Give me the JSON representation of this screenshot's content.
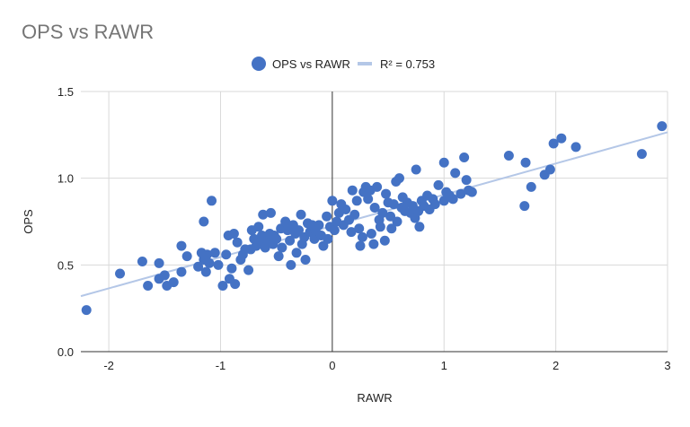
{
  "chart_data": {
    "type": "scatter",
    "title": "OPS vs RAWR",
    "xlabel": "RAWR",
    "ylabel": "OPS",
    "xlim": [
      -2.25,
      3.0
    ],
    "ylim": [
      0.0,
      1.5
    ],
    "x_ticks": [
      "-2",
      "-1",
      "0",
      "1",
      "2",
      "3"
    ],
    "y_ticks": [
      "0.0",
      "0.5",
      "1.0",
      "1.5"
    ],
    "grid": true,
    "legend_position": "top",
    "legend": {
      "series_label": "OPS vs RAWR",
      "trend_label": "R² = 0.753"
    },
    "colors": {
      "points": "#4472c4",
      "trendline": "#b4c7e7",
      "grid": "#d9d9d9",
      "zero_line": "#333333"
    },
    "trendline": {
      "slope": 0.18,
      "intercept": 0.725,
      "r_squared": 0.753
    },
    "series": [
      {
        "name": "OPS vs RAWR",
        "points": [
          [
            -2.2,
            0.24
          ],
          [
            -1.9,
            0.45
          ],
          [
            -1.7,
            0.52
          ],
          [
            -1.65,
            0.38
          ],
          [
            -1.55,
            0.51
          ],
          [
            -1.55,
            0.42
          ],
          [
            -1.5,
            0.44
          ],
          [
            -1.48,
            0.38
          ],
          [
            -1.42,
            0.4
          ],
          [
            -1.35,
            0.61
          ],
          [
            -1.35,
            0.46
          ],
          [
            -1.3,
            0.55
          ],
          [
            -1.2,
            0.49
          ],
          [
            -1.17,
            0.57
          ],
          [
            -1.15,
            0.53
          ],
          [
            -1.15,
            0.75
          ],
          [
            -1.13,
            0.46
          ],
          [
            -1.12,
            0.56
          ],
          [
            -1.1,
            0.51
          ],
          [
            -1.08,
            0.87
          ],
          [
            -1.05,
            0.57
          ],
          [
            -1.02,
            0.5
          ],
          [
            -0.98,
            0.38
          ],
          [
            -0.95,
            0.56
          ],
          [
            -0.93,
            0.67
          ],
          [
            -0.92,
            0.42
          ],
          [
            -0.9,
            0.48
          ],
          [
            -0.88,
            0.68
          ],
          [
            -0.87,
            0.39
          ],
          [
            -0.85,
            0.63
          ],
          [
            -0.82,
            0.53
          ],
          [
            -0.8,
            0.56
          ],
          [
            -0.78,
            0.59
          ],
          [
            -0.75,
            0.47
          ],
          [
            -0.73,
            0.59
          ],
          [
            -0.72,
            0.7
          ],
          [
            -0.7,
            0.65
          ],
          [
            -0.68,
            0.61
          ],
          [
            -0.66,
            0.72
          ],
          [
            -0.65,
            0.63
          ],
          [
            -0.63,
            0.67
          ],
          [
            -0.62,
            0.79
          ],
          [
            -0.6,
            0.6
          ],
          [
            -0.58,
            0.64
          ],
          [
            -0.56,
            0.68
          ],
          [
            -0.55,
            0.8
          ],
          [
            -0.53,
            0.62
          ],
          [
            -0.52,
            0.67
          ],
          [
            -0.5,
            0.65
          ],
          [
            -0.48,
            0.55
          ],
          [
            -0.46,
            0.71
          ],
          [
            -0.45,
            0.6
          ],
          [
            -0.42,
            0.75
          ],
          [
            -0.4,
            0.7
          ],
          [
            -0.38,
            0.64
          ],
          [
            -0.37,
            0.5
          ],
          [
            -0.35,
            0.73
          ],
          [
            -0.33,
            0.68
          ],
          [
            -0.32,
            0.57
          ],
          [
            -0.3,
            0.7
          ],
          [
            -0.28,
            0.79
          ],
          [
            -0.27,
            0.62
          ],
          [
            -0.25,
            0.66
          ],
          [
            -0.24,
            0.53
          ],
          [
            -0.22,
            0.74
          ],
          [
            -0.2,
            0.69
          ],
          [
            -0.18,
            0.73
          ],
          [
            -0.16,
            0.65
          ],
          [
            -0.15,
            0.7
          ],
          [
            -0.12,
            0.73
          ],
          [
            -0.1,
            0.67
          ],
          [
            -0.08,
            0.61
          ],
          [
            -0.05,
            0.78
          ],
          [
            -0.04,
            0.65
          ],
          [
            -0.02,
            0.72
          ],
          [
            0.0,
            0.87
          ],
          [
            0.02,
            0.7
          ],
          [
            0.04,
            0.75
          ],
          [
            0.06,
            0.8
          ],
          [
            0.08,
            0.85
          ],
          [
            0.1,
            0.73
          ],
          [
            0.12,
            0.82
          ],
          [
            0.15,
            0.76
          ],
          [
            0.17,
            0.69
          ],
          [
            0.18,
            0.93
          ],
          [
            0.2,
            0.79
          ],
          [
            0.22,
            0.87
          ],
          [
            0.24,
            0.71
          ],
          [
            0.25,
            0.61
          ],
          [
            0.27,
            0.66
          ],
          [
            0.28,
            0.92
          ],
          [
            0.3,
            0.95
          ],
          [
            0.32,
            0.88
          ],
          [
            0.34,
            0.93
          ],
          [
            0.35,
            0.68
          ],
          [
            0.37,
            0.62
          ],
          [
            0.38,
            0.83
          ],
          [
            0.4,
            0.95
          ],
          [
            0.42,
            0.76
          ],
          [
            0.43,
            0.72
          ],
          [
            0.45,
            0.8
          ],
          [
            0.47,
            0.64
          ],
          [
            0.48,
            0.91
          ],
          [
            0.5,
            0.86
          ],
          [
            0.52,
            0.78
          ],
          [
            0.53,
            0.71
          ],
          [
            0.55,
            0.85
          ],
          [
            0.57,
            0.98
          ],
          [
            0.58,
            0.75
          ],
          [
            0.6,
            1.0
          ],
          [
            0.62,
            0.83
          ],
          [
            0.63,
            0.89
          ],
          [
            0.65,
            0.81
          ],
          [
            0.67,
            0.86
          ],
          [
            0.7,
            0.8
          ],
          [
            0.72,
            0.84
          ],
          [
            0.74,
            0.77
          ],
          [
            0.75,
            1.05
          ],
          [
            0.77,
            0.81
          ],
          [
            0.78,
            0.72
          ],
          [
            0.8,
            0.87
          ],
          [
            0.82,
            0.84
          ],
          [
            0.85,
            0.9
          ],
          [
            0.87,
            0.82
          ],
          [
            0.9,
            0.88
          ],
          [
            0.92,
            0.85
          ],
          [
            0.95,
            0.96
          ],
          [
            1.0,
            1.09
          ],
          [
            1.0,
            0.87
          ],
          [
            1.02,
            0.92
          ],
          [
            1.05,
            0.9
          ],
          [
            1.08,
            0.88
          ],
          [
            1.1,
            1.03
          ],
          [
            1.15,
            0.91
          ],
          [
            1.18,
            1.12
          ],
          [
            1.2,
            0.99
          ],
          [
            1.22,
            0.93
          ],
          [
            1.25,
            0.92
          ],
          [
            1.58,
            1.13
          ],
          [
            1.72,
            0.84
          ],
          [
            1.73,
            1.09
          ],
          [
            1.78,
            0.95
          ],
          [
            1.9,
            1.02
          ],
          [
            1.95,
            1.05
          ],
          [
            1.98,
            1.2
          ],
          [
            2.05,
            1.23
          ],
          [
            2.18,
            1.18
          ],
          [
            2.77,
            1.14
          ],
          [
            2.95,
            1.3
          ]
        ]
      }
    ]
  }
}
